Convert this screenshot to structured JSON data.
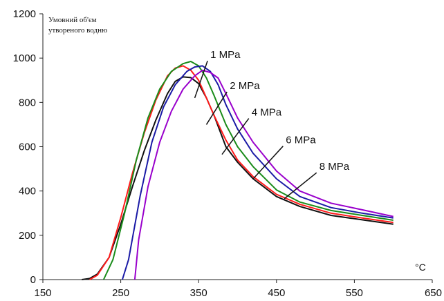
{
  "chart_data": {
    "type": "line",
    "ylabel_lines": [
      "Умовний об'єм",
      "утвореного водню"
    ],
    "xunit": "°C",
    "xlim": [
      150,
      650
    ],
    "ylim": [
      0,
      1200
    ],
    "xticks": [
      "150",
      "250",
      "350",
      "450",
      "550",
      "650"
    ],
    "yticks": [
      "0",
      "200",
      "400",
      "600",
      "800",
      "1000",
      "1200"
    ],
    "series": [
      {
        "name": "1 MPa",
        "color": "#111111",
        "points": [
          [
            200,
            0
          ],
          [
            210,
            5
          ],
          [
            220,
            25
          ],
          [
            235,
            100
          ],
          [
            250,
            250
          ],
          [
            265,
            420
          ],
          [
            280,
            580
          ],
          [
            295,
            720
          ],
          [
            310,
            840
          ],
          [
            320,
            895
          ],
          [
            330,
            915
          ],
          [
            340,
            912
          ],
          [
            350,
            885
          ],
          [
            360,
            820
          ],
          [
            370,
            740
          ],
          [
            385,
            600
          ],
          [
            400,
            530
          ],
          [
            420,
            455
          ],
          [
            450,
            375
          ],
          [
            480,
            330
          ],
          [
            520,
            290
          ],
          [
            560,
            270
          ],
          [
            600,
            250
          ]
        ]
      },
      {
        "name": "2 MPa",
        "color": "#ff1a1a",
        "points": [
          [
            210,
            0
          ],
          [
            220,
            20
          ],
          [
            235,
            100
          ],
          [
            250,
            280
          ],
          [
            265,
            480
          ],
          [
            280,
            660
          ],
          [
            295,
            810
          ],
          [
            310,
            920
          ],
          [
            320,
            955
          ],
          [
            330,
            965
          ],
          [
            340,
            945
          ],
          [
            350,
            900
          ],
          [
            360,
            820
          ],
          [
            370,
            740
          ],
          [
            385,
            630
          ],
          [
            400,
            540
          ],
          [
            420,
            465
          ],
          [
            450,
            385
          ],
          [
            480,
            340
          ],
          [
            520,
            300
          ],
          [
            560,
            278
          ],
          [
            600,
            258
          ]
        ]
      },
      {
        "name": "4 MPa",
        "color": "#1a8c1a",
        "points": [
          [
            228,
            0
          ],
          [
            240,
            90
          ],
          [
            255,
            300
          ],
          [
            270,
            540
          ],
          [
            285,
            730
          ],
          [
            300,
            860
          ],
          [
            315,
            940
          ],
          [
            330,
            975
          ],
          [
            340,
            985
          ],
          [
            350,
            965
          ],
          [
            360,
            910
          ],
          [
            370,
            830
          ],
          [
            385,
            700
          ],
          [
            400,
            600
          ],
          [
            420,
            510
          ],
          [
            450,
            405
          ],
          [
            480,
            350
          ],
          [
            520,
            312
          ],
          [
            560,
            290
          ],
          [
            600,
            268
          ]
        ]
      },
      {
        "name": "6 MPa",
        "color": "#1a1aa6",
        "points": [
          [
            252,
            0
          ],
          [
            260,
            90
          ],
          [
            275,
            380
          ],
          [
            290,
            620
          ],
          [
            305,
            780
          ],
          [
            320,
            880
          ],
          [
            335,
            940
          ],
          [
            345,
            960
          ],
          [
            355,
            965
          ],
          [
            365,
            940
          ],
          [
            375,
            880
          ],
          [
            385,
            790
          ],
          [
            400,
            680
          ],
          [
            420,
            570
          ],
          [
            450,
            455
          ],
          [
            480,
            375
          ],
          [
            520,
            325
          ],
          [
            560,
            300
          ],
          [
            600,
            278
          ]
        ]
      },
      {
        "name": "8 MPa",
        "color": "#9900cc",
        "points": [
          [
            268,
            0
          ],
          [
            273,
            180
          ],
          [
            285,
            420
          ],
          [
            300,
            620
          ],
          [
            315,
            760
          ],
          [
            330,
            860
          ],
          [
            345,
            920
          ],
          [
            355,
            945
          ],
          [
            365,
            935
          ],
          [
            375,
            910
          ],
          [
            385,
            840
          ],
          [
            400,
            730
          ],
          [
            420,
            620
          ],
          [
            450,
            490
          ],
          [
            480,
            400
          ],
          [
            520,
            345
          ],
          [
            560,
            315
          ],
          [
            600,
            285
          ]
        ]
      }
    ],
    "series_label_anchors": [
      {
        "label_at": [
          365,
          1000
        ],
        "line_to": [
          345,
          820
        ]
      },
      {
        "label_at": [
          390,
          860
        ],
        "line_to": [
          360,
          700
        ]
      },
      {
        "label_at": [
          418,
          740
        ],
        "line_to": [
          380,
          565
        ]
      },
      {
        "label_at": [
          462,
          615
        ],
        "line_to": [
          420,
          455
        ]
      },
      {
        "label_at": [
          505,
          495
        ],
        "line_to": [
          460,
          365
        ]
      }
    ]
  }
}
